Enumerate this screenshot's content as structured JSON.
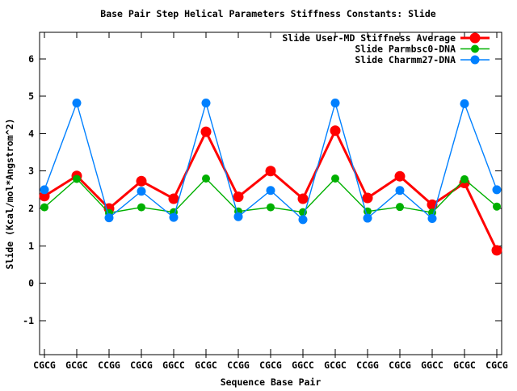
{
  "title": "Base Pair Step Helical Parameters Stiffness Constants: Slide",
  "chart_data": {
    "type": "line",
    "title": "Base Pair Step Helical Parameters Stiffness Constants: Slide",
    "xlabel": "Sequence Base Pair",
    "ylabel": "Slide (Kcal/mol*Angstrom^2)",
    "categories": [
      "CGCG",
      "GCGC",
      "CCGG",
      "CGCG",
      "GGCC",
      "GCGC",
      "CCGG",
      "CGCG",
      "GGCC",
      "GCGC",
      "CCGG",
      "CGCG",
      "GGCC",
      "GCGC",
      "CGCG"
    ],
    "series": [
      {
        "name": "Slide User-MD Stiffness Average",
        "color": "#ff0000",
        "line_width": 3,
        "marker": "circle",
        "marker_radius": 6.5,
        "values": [
          2.33,
          2.87,
          2.0,
          2.73,
          2.26,
          4.05,
          2.31,
          3.0,
          2.26,
          4.08,
          2.28,
          2.86,
          2.1,
          2.68,
          0.88
        ]
      },
      {
        "name": "Slide Parmbsc0-DNA",
        "color": "#00b000",
        "line_width": 1.4,
        "marker": "circle",
        "marker_radius": 5,
        "values": [
          2.03,
          2.79,
          1.88,
          2.03,
          1.9,
          2.8,
          1.92,
          2.03,
          1.9,
          2.8,
          1.92,
          2.04,
          1.89,
          2.78,
          2.05
        ]
      },
      {
        "name": "Slide Charmm27-DNA",
        "color": "#0080ff",
        "line_width": 1.4,
        "marker": "circle",
        "marker_radius": 5.5,
        "values": [
          2.5,
          4.82,
          1.75,
          2.46,
          1.76,
          4.82,
          1.78,
          2.48,
          1.7,
          4.82,
          1.74,
          2.48,
          1.73,
          4.8,
          2.5
        ]
      }
    ],
    "ylim": [
      -1.91,
      6.71
    ],
    "yticks": [
      -1,
      0,
      1,
      2,
      3,
      4,
      5,
      6
    ],
    "grid": false,
    "legend_position": "top-right-inside",
    "background": "#ffffff",
    "frame_color": "#000000",
    "text_color": "#000000"
  }
}
